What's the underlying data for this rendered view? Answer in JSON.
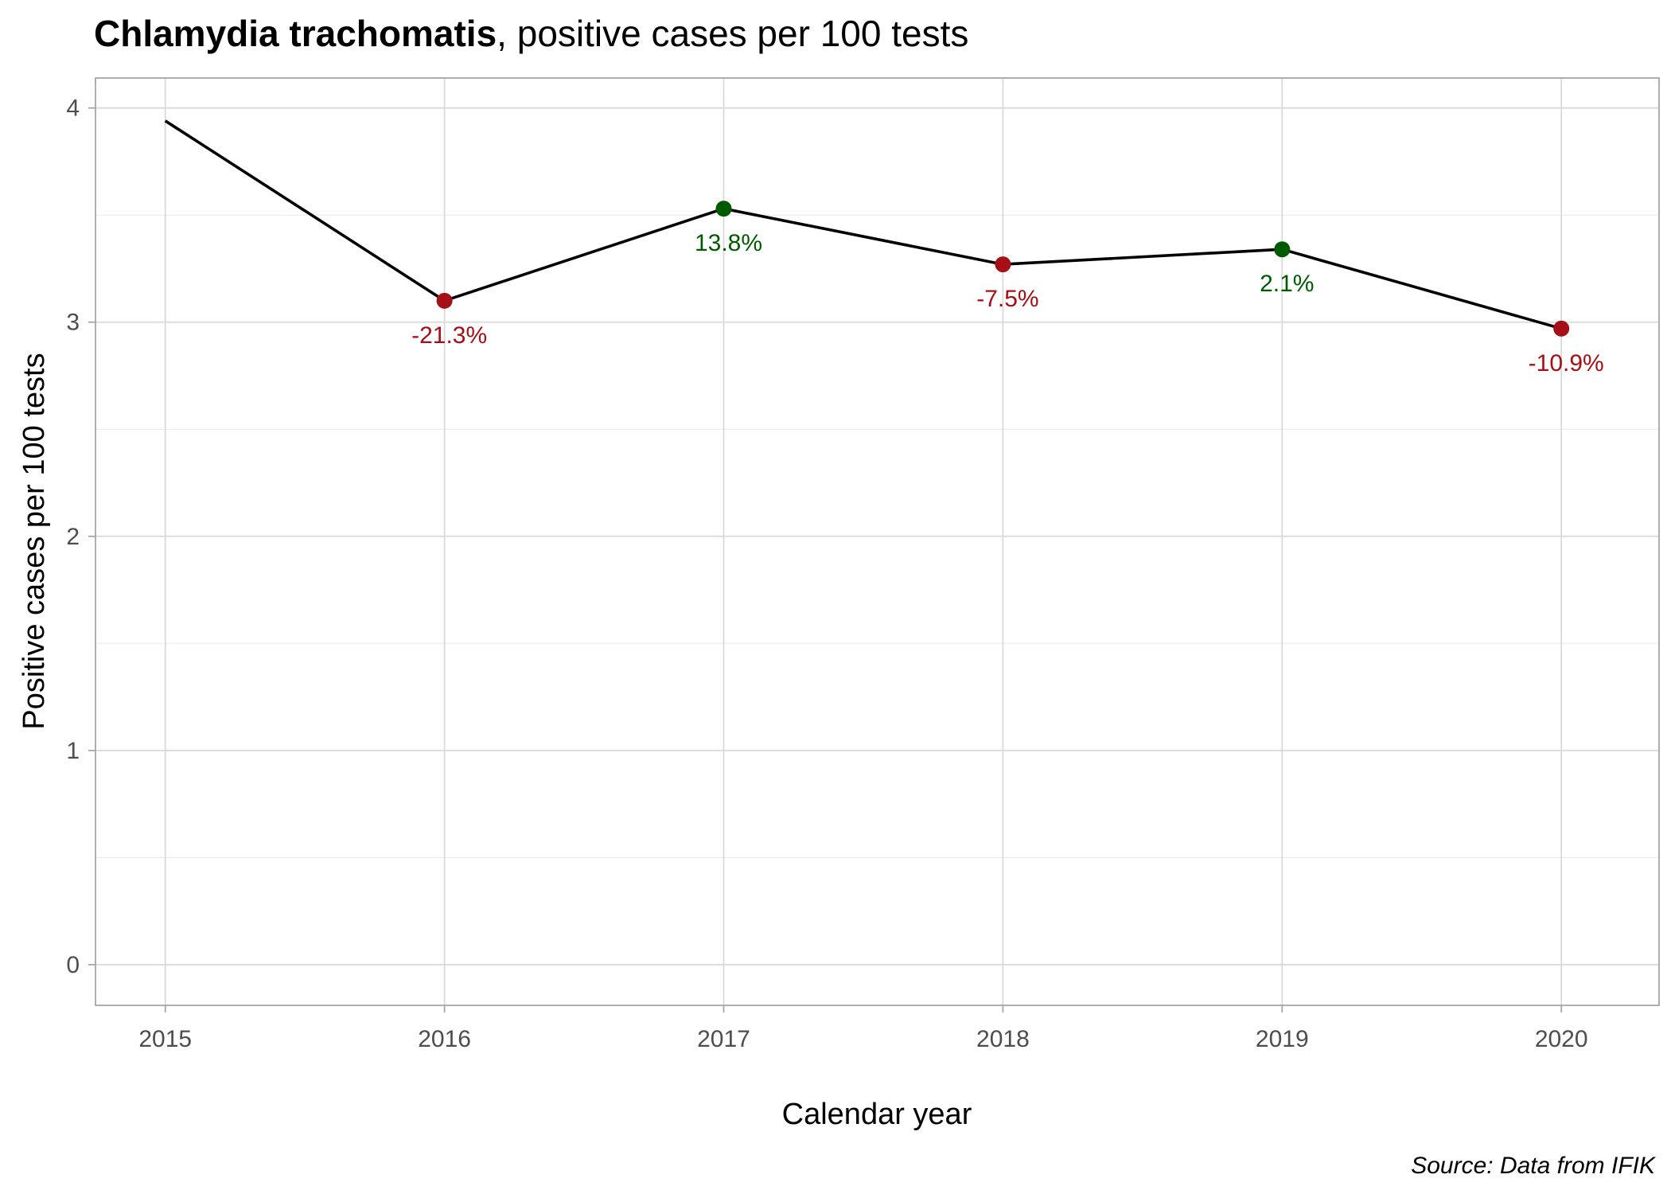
{
  "chart_data": {
    "type": "line",
    "title_bold": "Chlamydia trachomatis",
    "title_rest": ", positive cases per 100 tests",
    "xlabel": "Calendar year",
    "ylabel": "Positive cases per 100 tests",
    "caption": "Source: Data from IFIK",
    "x": [
      2015,
      2016,
      2017,
      2018,
      2019,
      2020
    ],
    "x_tick_labels": [
      "2015",
      "2016",
      "2017",
      "2018",
      "2019",
      "2020"
    ],
    "y_ticks": [
      0,
      1,
      2,
      3,
      4
    ],
    "y_tick_labels": [
      "0",
      "1",
      "2",
      "3",
      "4"
    ],
    "ylim": [
      -0.19,
      4.14
    ],
    "xlim": [
      2014.75,
      2020.35
    ],
    "series": [
      {
        "name": "Positive cases per 100 tests",
        "values": [
          3.94,
          3.1,
          3.53,
          3.27,
          3.34,
          2.97
        ],
        "change_labels": [
          null,
          "-21.3%",
          "13.8%",
          "-7.5%",
          "2.1%",
          "-10.9%"
        ],
        "line_color": "#000000"
      }
    ],
    "colors": {
      "decrease": "#a50f15",
      "increase": "#005a00"
    },
    "grid": true,
    "legend": "none"
  }
}
